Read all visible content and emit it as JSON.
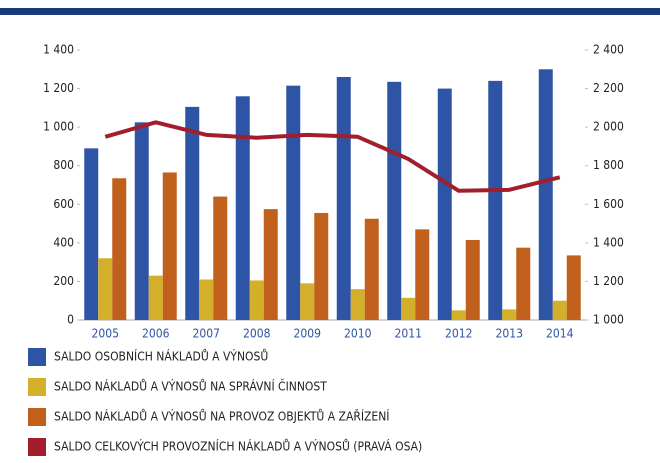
{
  "chart_data": {
    "type": "bar",
    "categories": [
      "2005",
      "2006",
      "2007",
      "2008",
      "2009",
      "2010",
      "2011",
      "2012",
      "2013",
      "2014"
    ],
    "series": [
      {
        "name": "SALDO OSOBNÍCH NÁKLADŮ A VÝNOSŮ",
        "color": "#2e55a5",
        "values": [
          890,
          1025,
          1105,
          1160,
          1215,
          1260,
          1235,
          1200,
          1240,
          1300
        ]
      },
      {
        "name": "SALDO NÁKLADŮ A VÝNOSŮ NA SPRÁVNÍ ČINNOST",
        "color": "#d4b02a",
        "values": [
          320,
          230,
          210,
          205,
          190,
          160,
          115,
          50,
          55,
          100
        ]
      },
      {
        "name": "SALDO NÁKLADŮ A VÝNOSŮ NA PROVOZ OBJEKTŮ A ZAŘÍZENÍ",
        "color": "#c0601c",
        "values": [
          735,
          765,
          640,
          575,
          555,
          525,
          470,
          415,
          375,
          335
        ]
      },
      {
        "name": "SALDO CELKOVÝCH PROVOZNÍCH NÁKLADŮ A VÝNOSŮ (PRAVÁ OSA)",
        "color": "#a31e2c",
        "type": "line",
        "axis": "y2",
        "values": [
          1950,
          2025,
          1960,
          1945,
          1960,
          1950,
          1835,
          1670,
          1675,
          1740
        ]
      }
    ],
    "ylim": [
      0,
      1400
    ],
    "yticks": [
      0,
      200,
      400,
      600,
      800,
      {
        "value": 1000,
        "label": "1 000"
      },
      {
        "value": 1200,
        "label": "1 200"
      },
      {
        "value": 1400,
        "label": "1 400"
      }
    ],
    "y2lim": [
      1000,
      2400
    ],
    "y2ticks": [
      {
        "value": 1000,
        "label": "1 000"
      },
      {
        "value": 1200,
        "label": "1 200"
      },
      {
        "value": 1400,
        "label": "1 400"
      },
      {
        "value": 1600,
        "label": "1 600"
      },
      {
        "value": 1800,
        "label": "1 800"
      },
      {
        "value": 2000,
        "label": "2 000"
      },
      {
        "value": 2200,
        "label": "2 200"
      },
      {
        "value": 2400,
        "label": "2 400"
      }
    ],
    "grid": false,
    "legend": "bottom"
  }
}
